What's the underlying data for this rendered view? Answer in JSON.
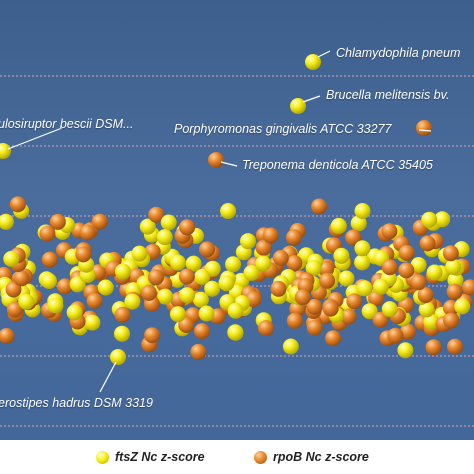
{
  "chart_data": {
    "type": "scatter",
    "title": "",
    "xlabel": "",
    "ylabel": "",
    "grid": "horizontal dashed lines",
    "legend_position": "bottom",
    "series": [
      {
        "name": "ftsZ Nc z-score",
        "color": "#f2ea1a"
      },
      {
        "name": "rpoB Nc z-score",
        "color": "#e58a2e"
      }
    ],
    "annotations": [
      {
        "label": "Chlamydophila pneum",
        "series": "ftsZ Nc z-score"
      },
      {
        "label": "Brucella melitensis bv.",
        "series": "ftsZ Nc z-score"
      },
      {
        "label": "ulosiruptor bescii DSM...",
        "series": "ftsZ Nc z-score"
      },
      {
        "label": "Porphyromonas gingivalis ATCC 33277",
        "series": "rpoB Nc z-score"
      },
      {
        "label": "Treponema denticola ATCC 35405",
        "series": "rpoB Nc z-score"
      },
      {
        "label": "erostipes hadrus DSM 3319",
        "series": "ftsZ Nc z-score"
      }
    ]
  },
  "legend": {
    "ftsz_label": "ftsZ Nc z-score",
    "rpob_label": "rpoB Nc z-score"
  },
  "colors": {
    "background": "#43679a",
    "gridline": "#d6a6b4",
    "ftsz": "#f2ea1a",
    "rpob": "#e58a2e"
  }
}
